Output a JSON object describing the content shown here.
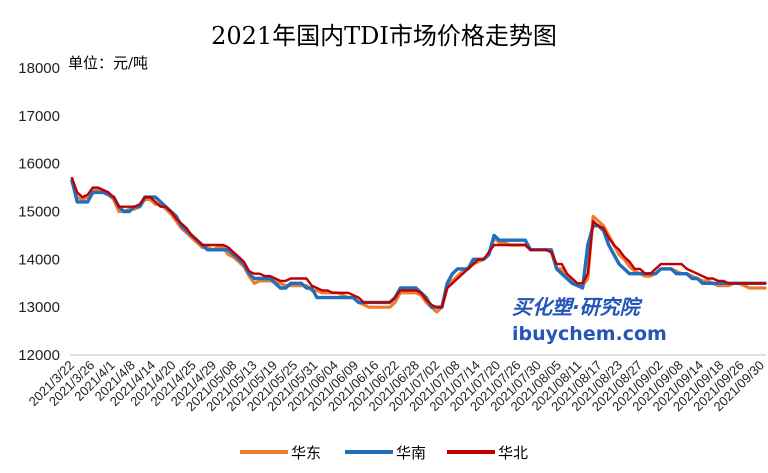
{
  "chart_data": {
    "type": "line",
    "title": "2021年国内TDI市场价格走势图",
    "unit_label": "单位：元/吨",
    "ylim": [
      12000,
      18000
    ],
    "yticks": [
      12000,
      13000,
      14000,
      15000,
      16000,
      17000,
      18000
    ],
    "grid": false,
    "legend_position": "bottom",
    "x_tick_labels": [
      "2021/3/22",
      "2021/3/26",
      "2021/4/1",
      "2021/4/8",
      "2021/4/14",
      "2021/4/20",
      "2021/4/25",
      "2021/4/29",
      "2021/05/08",
      "2021/05/13",
      "2021/05/19",
      "2021/05/25",
      "2021/05/31",
      "2021/06/04",
      "2021/06/09",
      "2021/06/16",
      "2021/06/22",
      "2021/06/28",
      "2021/07/02",
      "2021/07/08",
      "2021/07/14",
      "2021/07/20",
      "2021/07/26",
      "2021/07/30",
      "2021/08/05",
      "2021/08/11",
      "2021/08/17",
      "2021/08/23",
      "2021/08/27",
      "2021/09/02",
      "2021/09/08",
      "2021/09/14",
      "2021/09/18",
      "2021/09/26",
      "2021/09/30"
    ],
    "series": [
      {
        "name": "华东",
        "color": "#ed7d31",
        "values": [
          15600,
          15300,
          15250,
          15300,
          15450,
          15450,
          15400,
          15350,
          15250,
          15000,
          15000,
          15050,
          15050,
          15100,
          15250,
          15250,
          15150,
          15150,
          15050,
          14950,
          14800,
          14650,
          14550,
          14450,
          14350,
          14250,
          14250,
          14200,
          14250,
          14250,
          14100,
          14050,
          13950,
          13850,
          13650,
          13500,
          13550,
          13550,
          13550,
          13550,
          13500,
          13450,
          13450,
          13450,
          13450,
          13450,
          13350,
          13350,
          13300,
          13300,
          13300,
          13300,
          13250,
          13200,
          13200,
          13100,
          13050,
          13000,
          13000,
          13000,
          13000,
          13000,
          13100,
          13300,
          13300,
          13300,
          13300,
          13250,
          13100,
          13000,
          12900,
          13000,
          13400,
          13550,
          13650,
          13750,
          13800,
          13900,
          13950,
          14000,
          14100,
          14450,
          14350,
          14350,
          14300,
          14300,
          14300,
          14300,
          14200,
          14200,
          14200,
          14200,
          14150,
          13800,
          13800,
          13650,
          13550,
          13450,
          13450,
          13600,
          14900,
          14800,
          14700,
          14500,
          14300,
          14100,
          14000,
          13850,
          13750,
          13700,
          13650,
          13650,
          13700,
          13800,
          13800,
          13800,
          13750,
          13700,
          13700,
          13650,
          13600,
          13550,
          13550,
          13500,
          13450,
          13450,
          13450,
          13500,
          13500,
          13450,
          13400,
          13400,
          13400,
          13400
        ]
      },
      {
        "name": "华南",
        "color": "#1f6fbe",
        "values": [
          15650,
          15200,
          15200,
          15200,
          15400,
          15400,
          15400,
          15350,
          15300,
          15100,
          15000,
          15000,
          15100,
          15100,
          15300,
          15300,
          15300,
          15200,
          15100,
          15000,
          14900,
          14700,
          14600,
          14500,
          14400,
          14300,
          14200,
          14200,
          14200,
          14200,
          14200,
          14100,
          14000,
          13900,
          13700,
          13600,
          13600,
          13600,
          13600,
          13500,
          13400,
          13400,
          13500,
          13500,
          13500,
          13400,
          13400,
          13200,
          13200,
          13200,
          13200,
          13200,
          13200,
          13200,
          13200,
          13100,
          13100,
          13100,
          13100,
          13100,
          13100,
          13100,
          13200,
          13400,
          13400,
          13400,
          13400,
          13300,
          13200,
          13000,
          13000,
          13000,
          13500,
          13700,
          13800,
          13800,
          13800,
          14000,
          14000,
          14000,
          14100,
          14500,
          14400,
          14400,
          14400,
          14400,
          14400,
          14400,
          14200,
          14200,
          14200,
          14200,
          14200,
          13800,
          13700,
          13600,
          13500,
          13450,
          13400,
          14300,
          14700,
          14700,
          14600,
          14300,
          14100,
          13900,
          13800,
          13700,
          13700,
          13700,
          13700,
          13700,
          13700,
          13800,
          13800,
          13800,
          13700,
          13700,
          13700,
          13600,
          13600,
          13500,
          13500,
          13500,
          13500,
          13500,
          13500,
          13500,
          13500,
          13500,
          13500,
          13500,
          13500,
          13500
        ]
      },
      {
        "name": "华北",
        "color": "#c00000",
        "values": [
          15700,
          15400,
          15300,
          15350,
          15500,
          15500,
          15450,
          15400,
          15300,
          15100,
          15100,
          15100,
          15100,
          15150,
          15300,
          15300,
          15200,
          15100,
          15100,
          15000,
          14850,
          14750,
          14650,
          14500,
          14400,
          14300,
          14300,
          14300,
          14300,
          14300,
          14250,
          14150,
          14050,
          13950,
          13750,
          13700,
          13700,
          13650,
          13650,
          13600,
          13550,
          13550,
          13600,
          13600,
          13600,
          13600,
          13450,
          13400,
          13350,
          13350,
          13300,
          13300,
          13300,
          13300,
          13250,
          13200,
          13100,
          13100,
          13100,
          13100,
          13100,
          13100,
          13200,
          13350,
          13350,
          13350,
          13350,
          13300,
          13150,
          13050,
          13000,
          13000,
          13400,
          13500,
          13600,
          13700,
          13800,
          13900,
          14000,
          14000,
          14150,
          14300,
          14300,
          14300,
          14300,
          14300,
          14300,
          14300,
          14200,
          14200,
          14200,
          14200,
          14150,
          13900,
          13900,
          13700,
          13600,
          13500,
          13500,
          13700,
          14800,
          14700,
          14650,
          14450,
          14300,
          14200,
          14050,
          13950,
          13800,
          13800,
          13700,
          13700,
          13800,
          13900,
          13900,
          13900,
          13900,
          13900,
          13800,
          13750,
          13700,
          13650,
          13600,
          13600,
          13550,
          13550,
          13500,
          13500,
          13500,
          13500,
          13500,
          13500,
          13500,
          13500
        ]
      }
    ]
  },
  "watermark": {
    "brand_cn": "买化塑·研究院",
    "brand_url": "ibuychem.com"
  }
}
